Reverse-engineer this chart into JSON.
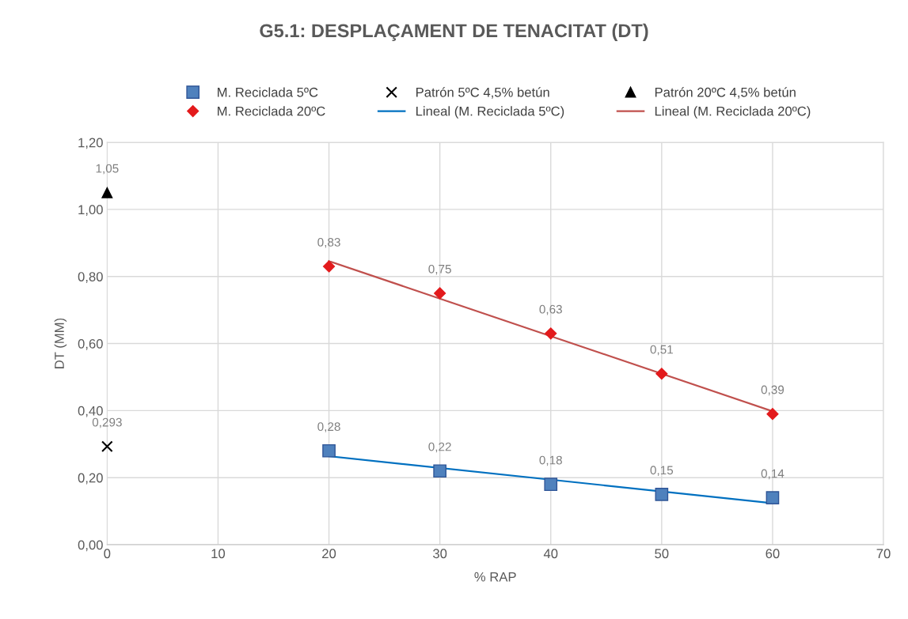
{
  "chart_data": {
    "type": "scatter",
    "title": "G5.1: DESPLAÇAMENT DE TENACITAT (DT)",
    "xlabel": "% RAP",
    "ylabel": "DT (MM)",
    "xlim": [
      0,
      70
    ],
    "xticks": [
      0,
      10,
      20,
      30,
      40,
      50,
      60,
      70
    ],
    "ylim": [
      0,
      1.2
    ],
    "yticks": [
      {
        "value": 0,
        "label": "0,00"
      },
      {
        "value": 0.2,
        "label": "0,20"
      },
      {
        "value": 0.4,
        "label": "0,40"
      },
      {
        "value": 0.6,
        "label": "0,60"
      },
      {
        "value": 0.8,
        "label": "0,80"
      },
      {
        "value": 1.0,
        "label": "1,00"
      },
      {
        "value": 1.2,
        "label": "1,20"
      }
    ],
    "grid": true,
    "legend": "top",
    "series": [
      {
        "name": "M. Reciclada 5ºC",
        "marker": "square",
        "color": "#4f81bd",
        "x": [
          20,
          30,
          40,
          50,
          60
        ],
        "values": [
          0.28,
          0.22,
          0.18,
          0.15,
          0.14
        ],
        "value_labels": [
          "0,28",
          "0,22",
          "0,18",
          "0,15",
          "0,14"
        ]
      },
      {
        "name": "Patrón 5ºC 4,5% betún",
        "marker": "cross",
        "color": "#000000",
        "x": [
          0
        ],
        "values": [
          0.293
        ],
        "value_labels": [
          "0,293"
        ]
      },
      {
        "name": "Patrón 20ºC 4,5% betún",
        "marker": "triangle",
        "color": "#000000",
        "x": [
          0
        ],
        "values": [
          1.05
        ],
        "value_labels": [
          "1,05"
        ]
      },
      {
        "name": "M. Reciclada 20ºC",
        "marker": "diamond",
        "color": "#e31a1c",
        "x": [
          20,
          30,
          40,
          50,
          60
        ],
        "values": [
          0.83,
          0.75,
          0.63,
          0.51,
          0.39
        ],
        "value_labels": [
          "0,83",
          "0,75",
          "0,63",
          "0,51",
          "0,39"
        ]
      },
      {
        "name": "Lineal (M. Reciclada 5ºC)",
        "type": "line",
        "line_style": "solid",
        "color": "#0070c0",
        "x": [
          20,
          60
        ],
        "values": [
          0.264,
          0.124
        ]
      },
      {
        "name": "Lineal (M. Reciclada 20ºC)",
        "type": "line",
        "line_style": "solid",
        "color": "#c0504d",
        "x": [
          20,
          60
        ],
        "values": [
          0.846,
          0.398
        ]
      }
    ]
  }
}
